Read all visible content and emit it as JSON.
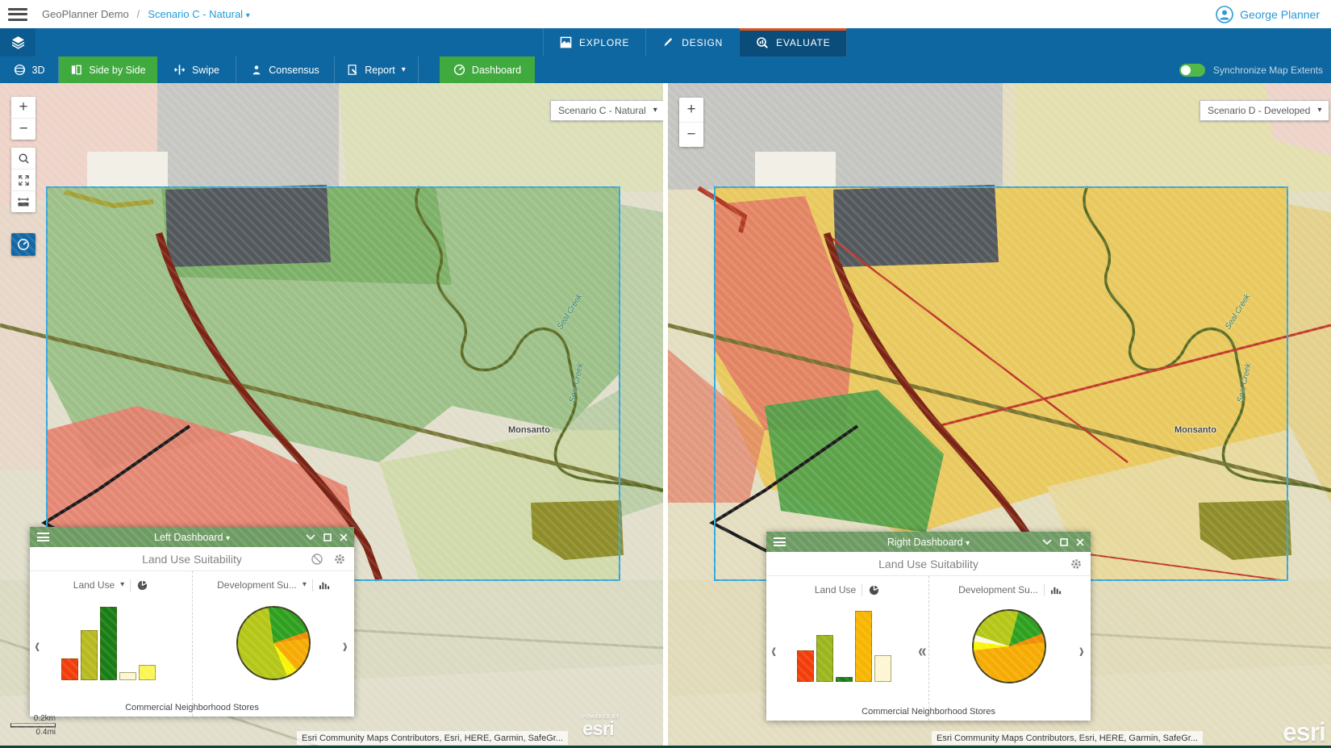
{
  "header": {
    "app_title": "GeoPlanner Demo",
    "separator": "/",
    "scenario_dropdown": "Scenario C - Natural",
    "user_name": "George Planner"
  },
  "nav": {
    "tabs": [
      {
        "label": "EXPLORE",
        "active": false
      },
      {
        "label": "DESIGN",
        "active": false
      },
      {
        "label": "EVALUATE",
        "active": true
      }
    ]
  },
  "toolbar": {
    "buttons": [
      {
        "label": "3D",
        "active": false
      },
      {
        "label": "Side by Side",
        "active": true
      },
      {
        "label": "Swipe",
        "active": false
      },
      {
        "label": "Consensus",
        "active": false
      },
      {
        "label": "Report",
        "active": false,
        "has_dropdown": true
      },
      {
        "label": "Dashboard",
        "active": true
      }
    ],
    "sync_toggle_label": "Synchronize Map Extents",
    "sync_on": true
  },
  "maps": {
    "left": {
      "selector": "Scenario C - Natural",
      "place_label": "Monsanto",
      "creek_label": "Seal Creek",
      "attribution": "Esri Community Maps Contributors, Esri, HERE, Garmin, SafeGr...",
      "scale_km": "0.2km",
      "scale_mi": "0.4mi",
      "powered_by_label": "POWERED BY",
      "esri_logo": "esri"
    },
    "right": {
      "selector": "Scenario D - Developed",
      "place_label": "Monsanto",
      "creek_label": "Seal Creek",
      "attribution": "Esri Community Maps Contributors, Esri, HERE, Garmin, SafeGr...",
      "esri_logo": "esri"
    }
  },
  "dashboards": {
    "left": {
      "title": "Left Dashboard",
      "subtitle": "Land Use Suitability",
      "chart1_label": "Land Use",
      "chart2_label": "Development Su...",
      "caption": "Commercial Neighborhood Stores"
    },
    "right": {
      "title": "Right Dashboard",
      "subtitle": "Land Use Suitability",
      "chart1_label": "Land Use",
      "chart2_label": "Development Su...",
      "caption": "Commercial Neighborhood Stores"
    }
  },
  "chart_data": [
    {
      "id": "left-bar",
      "dashboard": "Left Dashboard",
      "title": "Land Use",
      "type": "bar",
      "values": [
        27,
        62,
        91,
        10,
        19
      ],
      "colors": [
        "#f23d0a",
        "#b7ba1f",
        "#177d14",
        "#fdf6d3",
        "#f9f556"
      ],
      "ylim": [
        0,
        100
      ],
      "note": "category tick labels not shown in UI; heights estimated from pixels"
    },
    {
      "id": "left-pie",
      "dashboard": "Left Dashboard",
      "title": "Development Su...",
      "type": "pie",
      "start_deg": -8,
      "slices": [
        {
          "value": 22,
          "color": "#2da01e"
        },
        {
          "value": 3,
          "color": "#ef8d05"
        },
        {
          "value": 16,
          "color": "#f6ab02"
        },
        {
          "value": 5,
          "color": "#f8f406"
        },
        {
          "value": 54,
          "color": "#b4c717"
        }
      ]
    },
    {
      "id": "right-bar",
      "dashboard": "Right Dashboard",
      "title": "Land Use",
      "type": "bar",
      "values": [
        39,
        58,
        6,
        88,
        33
      ],
      "colors": [
        "#f23d0a",
        "#9ab61c",
        "#177d14",
        "#f7b500",
        "#fdf6d3"
      ],
      "ylim": [
        0,
        100
      ],
      "note": "category tick labels not shown in UI; heights estimated from pixels"
    },
    {
      "id": "right-pie",
      "dashboard": "Right Dashboard",
      "title": "Development Su...",
      "type": "pie",
      "start_deg": 15,
      "slices": [
        {
          "value": 15,
          "color": "#2da01e"
        },
        {
          "value": 4,
          "color": "#ef8d05"
        },
        {
          "value": 50,
          "color": "#f6ab02"
        },
        {
          "value": 4,
          "color": "#f8f406"
        },
        {
          "value": 3,
          "color": "#fdf8e0"
        },
        {
          "value": 24,
          "color": "#b4c717"
        }
      ]
    }
  ],
  "colors": {
    "nav_blue": "#0f67a1",
    "nav_active_blue": "#0a4d7a",
    "active_tab_border": "#d9531e",
    "action_green": "#41aa3f",
    "dashboard_header_green": "#6d9b63",
    "toggle_green": "#52b848",
    "link_blue": "#1e9cd7"
  }
}
